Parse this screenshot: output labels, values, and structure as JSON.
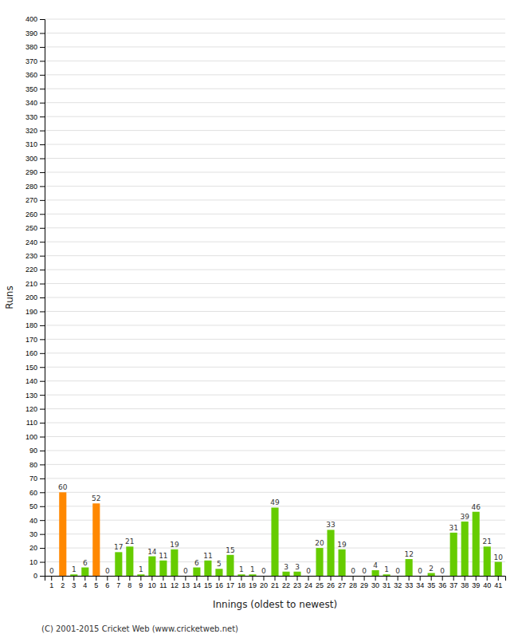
{
  "chart_data": {
    "type": "bar",
    "xlabel": "Innings (oldest to newest)",
    "ylabel": "Runs",
    "footer": "(C) 2001-2015 Cricket Web (www.cricketweb.net)",
    "categories": [
      "1",
      "2",
      "3",
      "4",
      "5",
      "6",
      "7",
      "8",
      "9",
      "10",
      "11",
      "12",
      "13",
      "14",
      "15",
      "16",
      "17",
      "18",
      "19",
      "20",
      "21",
      "22",
      "23",
      "24",
      "25",
      "26",
      "27",
      "28",
      "29",
      "30",
      "31",
      "32",
      "33",
      "34",
      "35",
      "36",
      "37",
      "38",
      "39",
      "40",
      "41"
    ],
    "values": [
      0,
      60,
      1,
      6,
      52,
      0,
      17,
      21,
      1,
      14,
      11,
      19,
      0,
      6,
      11,
      5,
      15,
      1,
      1,
      0,
      49,
      3,
      3,
      0,
      20,
      33,
      19,
      0,
      0,
      4,
      1,
      0,
      12,
      0,
      2,
      0,
      31,
      39,
      46,
      21,
      10
    ],
    "colors": [
      "#66cc00",
      "#ff8800",
      "#66cc00",
      "#66cc00",
      "#ff8800",
      "#66cc00",
      "#66cc00",
      "#66cc00",
      "#66cc00",
      "#66cc00",
      "#66cc00",
      "#66cc00",
      "#66cc00",
      "#66cc00",
      "#66cc00",
      "#66cc00",
      "#66cc00",
      "#66cc00",
      "#66cc00",
      "#66cc00",
      "#66cc00",
      "#66cc00",
      "#66cc00",
      "#66cc00",
      "#66cc00",
      "#66cc00",
      "#66cc00",
      "#66cc00",
      "#66cc00",
      "#66cc00",
      "#66cc00",
      "#66cc00",
      "#66cc00",
      "#66cc00",
      "#66cc00",
      "#66cc00",
      "#66cc00",
      "#66cc00",
      "#66cc00",
      "#66cc00",
      "#66cc00"
    ],
    "ylim": [
      0,
      400
    ],
    "yticks": [
      0,
      10,
      20,
      30,
      40,
      50,
      60,
      70,
      80,
      90,
      100,
      110,
      120,
      130,
      140,
      150,
      160,
      170,
      180,
      190,
      200,
      210,
      220,
      230,
      240,
      250,
      260,
      270,
      280,
      290,
      300,
      310,
      320,
      330,
      340,
      350,
      360,
      370,
      380,
      390,
      400
    ],
    "grid": true,
    "data_labels": true
  }
}
